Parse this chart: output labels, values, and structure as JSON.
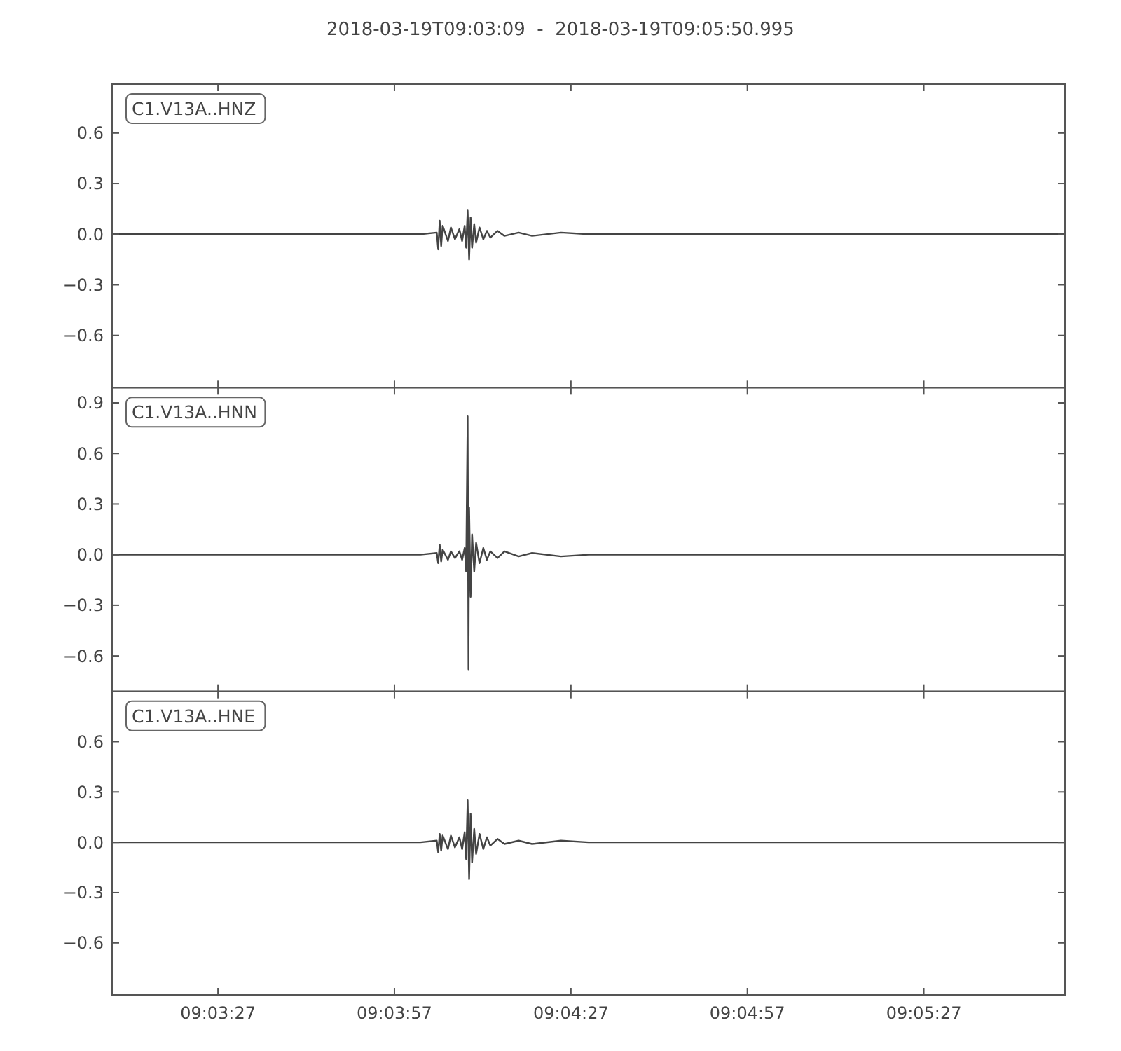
{
  "chart_data": [
    {
      "type": "line",
      "title": "2018-03-19T09:03:09  -  2018-03-19T09:05:50.995",
      "legend": "top left",
      "tick_labels": "y",
      "xlim": [
        9.0525,
        9.0974986
      ],
      "xticks": [
        {
          "value": 9.0575,
          "label": null
        },
        {
          "value": 9.065833,
          "label": null
        },
        {
          "value": 9.074167,
          "label": null
        },
        {
          "value": 9.0825,
          "label": null
        },
        {
          "value": 9.090833,
          "label": null
        }
      ],
      "ylim": [
        -0.91,
        0.89
      ],
      "yticks": [
        {
          "value": -0.6,
          "label": "−0.6"
        },
        {
          "value": -0.3,
          "label": "−0.3"
        },
        {
          "value": 0,
          "label": "0.0"
        },
        {
          "value": 0.3,
          "label": "0.3"
        },
        {
          "value": 0.6,
          "label": "0.6"
        }
      ],
      "series": [
        {
          "name": "C1.V13A..HNZ",
          "color": "#444444",
          "x": [
            9.0525,
            9.06044,
            9.06706,
            9.06783,
            9.0679,
            9.06797,
            9.06804,
            9.06811,
            9.06836,
            9.0685,
            9.06869,
            9.0689,
            9.06903,
            9.06915,
            9.06922,
            9.06929,
            9.06936,
            9.06943,
            9.0695,
            9.0696,
            9.06969,
            9.06985,
            9.07003,
            9.0702,
            9.07036,
            9.0707,
            9.07103,
            9.0717,
            9.07233,
            9.0737,
            9.075,
            9.077,
            9.07894,
            9.08425,
            9.09,
            9.09747
          ],
          "values": [
            0,
            0,
            0,
            0.01,
            -0.09,
            0.08,
            -0.07,
            0.05,
            -0.04,
            0.04,
            -0.03,
            0.03,
            -0.04,
            0.05,
            -0.08,
            0.14,
            -0.15,
            0.1,
            -0.08,
            0.06,
            -0.05,
            0.04,
            -0.03,
            0.02,
            -0.02,
            0.02,
            -0.01,
            0.01,
            -0.01,
            0.01,
            0,
            0,
            0,
            0,
            0,
            0
          ]
        }
      ]
    },
    {
      "type": "line",
      "legend": "top left",
      "tick_labels": "y",
      "xlim": [
        9.0525,
        9.0974986
      ],
      "xticks": [
        {
          "value": 9.0575,
          "label": null
        },
        {
          "value": 9.065833,
          "label": null
        },
        {
          "value": 9.074167,
          "label": null
        },
        {
          "value": 9.0825,
          "label": null
        },
        {
          "value": 9.090833,
          "label": null
        }
      ],
      "ylim": [
        -0.81,
        0.99
      ],
      "yticks": [
        {
          "value": -0.6,
          "label": "−0.6"
        },
        {
          "value": -0.3,
          "label": "−0.3"
        },
        {
          "value": 0,
          "label": "0.0"
        },
        {
          "value": 0.3,
          "label": "0.3"
        },
        {
          "value": 0.6,
          "label": "0.6"
        },
        {
          "value": 0.9,
          "label": "0.9"
        }
      ],
      "series": [
        {
          "name": "C1.V13A..HNN",
          "color": "#444444",
          "x": [
            9.0525,
            9.06044,
            9.06706,
            9.06783,
            9.0679,
            9.06797,
            9.06804,
            9.06811,
            9.06836,
            9.0685,
            9.06869,
            9.0689,
            9.06903,
            9.06915,
            9.06922,
            9.06929,
            9.06933,
            9.06936,
            9.06943,
            9.0695,
            9.0696,
            9.06969,
            9.06985,
            9.07003,
            9.0702,
            9.07036,
            9.0707,
            9.07103,
            9.0717,
            9.07233,
            9.0737,
            9.075,
            9.077,
            9.07894,
            9.08425,
            9.09,
            9.09747
          ],
          "values": [
            0,
            0,
            0,
            0.01,
            -0.05,
            0.06,
            -0.04,
            0.03,
            -0.03,
            0.02,
            -0.02,
            0.02,
            -0.03,
            0.04,
            -0.1,
            0.82,
            -0.68,
            0.28,
            -0.25,
            0.12,
            -0.1,
            0.07,
            -0.05,
            0.04,
            -0.03,
            0.02,
            -0.02,
            0.02,
            -0.01,
            0.01,
            -0.01,
            0,
            0,
            0,
            0,
            0,
            0
          ]
        }
      ]
    },
    {
      "type": "line",
      "legend": "top left",
      "xlim": [
        9.0525,
        9.0974986
      ],
      "xticks": [
        {
          "value": 9.0575,
          "label": "09:03:27"
        },
        {
          "value": 9.065833,
          "label": "09:03:57"
        },
        {
          "value": 9.074167,
          "label": "09:04:27"
        },
        {
          "value": 9.0825,
          "label": "09:04:57"
        },
        {
          "value": 9.090833,
          "label": "09:05:27"
        }
      ],
      "ylim": [
        -0.91,
        0.9
      ],
      "yticks": [
        {
          "value": -0.6,
          "label": "−0.6"
        },
        {
          "value": -0.3,
          "label": "−0.3"
        },
        {
          "value": 0,
          "label": "0.0"
        },
        {
          "value": 0.3,
          "label": "0.3"
        },
        {
          "value": 0.6,
          "label": "0.6"
        }
      ],
      "series": [
        {
          "name": "C1.V13A..HNE",
          "color": "#444444",
          "x": [
            9.0525,
            9.06044,
            9.06706,
            9.06783,
            9.0679,
            9.06797,
            9.06804,
            9.06811,
            9.06836,
            9.0685,
            9.06869,
            9.0689,
            9.06903,
            9.06915,
            9.06922,
            9.06929,
            9.06936,
            9.06943,
            9.0695,
            9.0696,
            9.06969,
            9.06985,
            9.07003,
            9.0702,
            9.07036,
            9.0707,
            9.07103,
            9.0717,
            9.07233,
            9.0737,
            9.075,
            9.077,
            9.07894,
            9.08425,
            9.09,
            9.09747
          ],
          "values": [
            0,
            0,
            0,
            0.01,
            -0.06,
            0.05,
            -0.05,
            0.04,
            -0.04,
            0.04,
            -0.03,
            0.03,
            -0.04,
            0.06,
            -0.1,
            0.25,
            -0.22,
            0.17,
            -0.12,
            0.08,
            -0.07,
            0.05,
            -0.04,
            0.03,
            -0.02,
            0.02,
            -0.01,
            0.01,
            -0.01,
            0.01,
            0,
            0,
            0,
            0,
            0,
            0
          ]
        }
      ]
    }
  ]
}
